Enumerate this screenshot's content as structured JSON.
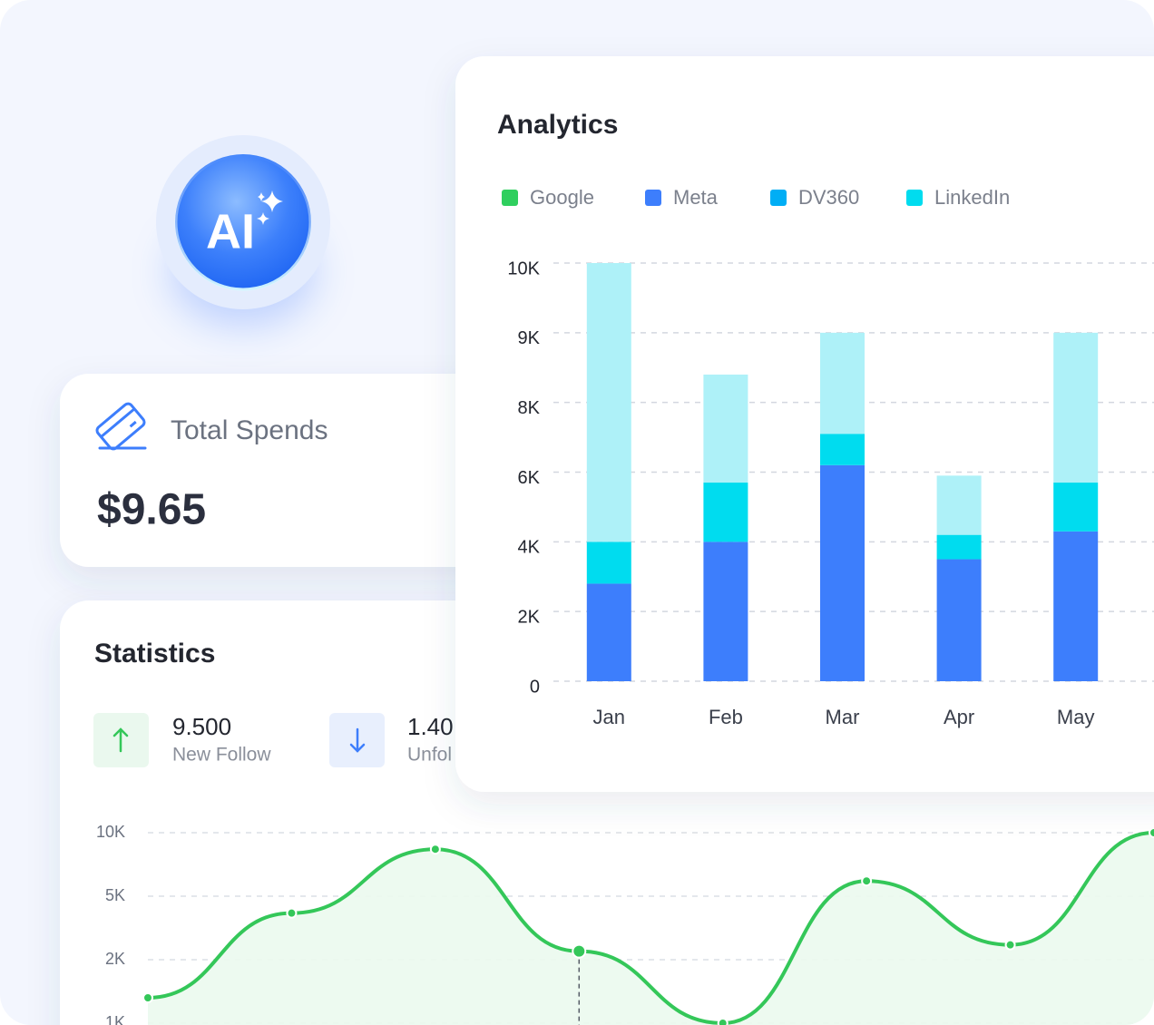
{
  "badge": "AI",
  "spend_card": {
    "title": "Total Spends",
    "amount": "$9.65"
  },
  "stats_card": {
    "title": "Statistics",
    "items": [
      {
        "value": "9.500",
        "label": "New Follow",
        "direction": "up"
      },
      {
        "value": "1.40",
        "label": "Unfol",
        "direction": "down"
      }
    ]
  },
  "chart_data": [
    {
      "type": "stacked-bar",
      "title": "Analytics",
      "categories": [
        "Jan",
        "Feb",
        "Mar",
        "Apr",
        "May"
      ],
      "series": [
        {
          "name": "Google",
          "color": "#2fcf5e",
          "bar_color": "#2fcf5e",
          "values": [
            null,
            null,
            null,
            null,
            null
          ]
        },
        {
          "name": "Meta",
          "color": "#3d7efc",
          "bar_color": "#3d7efc",
          "values": [
            2800,
            4000,
            6200,
            3500,
            4300
          ]
        },
        {
          "name": "DV360",
          "color": "#00aef5",
          "bar_color": "#aef1f8",
          "values": [
            6000,
            2700,
            1900,
            1700,
            3300
          ]
        },
        {
          "name": "LinkedIn",
          "color": "#00dcef",
          "bar_color": "#00dcef",
          "values": [
            1200,
            1700,
            900,
            700,
            1400
          ]
        }
      ],
      "stack_order": [
        1,
        3,
        2
      ],
      "ylim": [
        0,
        10000
      ],
      "yticks": [
        0,
        {
          "value": 2000,
          "label": "2K"
        },
        {
          "value": 4000,
          "label": "4K"
        },
        {
          "value": 6000,
          "label": "6K"
        },
        {
          "value": 8000,
          "label": "8K"
        },
        {
          "value": 9000,
          "label": "9K"
        },
        {
          "value": 10000,
          "label": "10K"
        }
      ],
      "grid": true
    },
    {
      "type": "line",
      "categories": [
        null,
        null,
        null,
        null,
        null,
        null,
        null,
        null
      ],
      "values": [
        1400,
        4200,
        8700,
        2400,
        1000,
        6200,
        2700,
        10000
      ],
      "color": "#34c759",
      "highlight": 3,
      "ylim": [
        1000,
        10000
      ],
      "yticks": [
        {
          "value": 1000,
          "label": "1K"
        },
        {
          "value": 2000,
          "label": "2K"
        },
        {
          "value": 5000,
          "label": "5K"
        },
        {
          "value": 10000,
          "label": "10K"
        }
      ],
      "grid": true
    }
  ]
}
